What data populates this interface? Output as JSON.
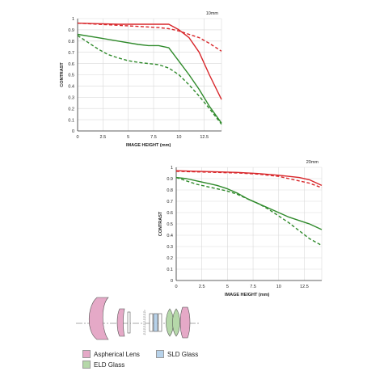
{
  "colors": {
    "red": "#d8262a",
    "green": "#2f8a2b",
    "aspherical": "#e5a9c7",
    "sld": "#b7d2ea",
    "eld": "#b5d8a9",
    "grid": "#d9d9d9"
  },
  "chart_data": [
    {
      "type": "line",
      "title": "10mm",
      "xlabel": "IMAGE HEIGHT (mm)",
      "ylabel": "CONTRAST",
      "xlim": [
        0,
        14.2
      ],
      "ylim": [
        0,
        1
      ],
      "xticks": [
        "0",
        "2.5",
        "5",
        "7.5",
        "10",
        "12.5"
      ],
      "yticks": [
        "0",
        "0.1",
        "0.2",
        "0.3",
        "0.4",
        "0.5",
        "0.6",
        "0.7",
        "0.8",
        "0.9",
        "1"
      ],
      "grid": true,
      "series": [
        {
          "color": "red",
          "style": "solid",
          "x": [
            0,
            2,
            4,
            6,
            8,
            9,
            10,
            11,
            12,
            13,
            14.2
          ],
          "y": [
            0.96,
            0.955,
            0.95,
            0.95,
            0.95,
            0.95,
            0.9,
            0.83,
            0.7,
            0.5,
            0.28
          ]
        },
        {
          "color": "red",
          "style": "dashed",
          "x": [
            0,
            2,
            4,
            6,
            8,
            9,
            10,
            11,
            12,
            13,
            14.2
          ],
          "y": [
            0.96,
            0.95,
            0.94,
            0.93,
            0.92,
            0.91,
            0.89,
            0.86,
            0.83,
            0.78,
            0.71
          ]
        },
        {
          "color": "green",
          "style": "solid",
          "x": [
            0,
            2,
            4,
            6,
            7,
            8,
            9,
            10,
            11,
            12,
            13,
            14.2
          ],
          "y": [
            0.86,
            0.83,
            0.8,
            0.77,
            0.76,
            0.76,
            0.74,
            0.62,
            0.5,
            0.37,
            0.22,
            0.07
          ]
        },
        {
          "color": "green",
          "style": "dashed",
          "x": [
            0,
            1,
            2,
            3,
            4,
            5,
            6,
            7,
            8,
            9,
            10,
            11,
            12,
            13,
            14.2
          ],
          "y": [
            0.85,
            0.79,
            0.73,
            0.68,
            0.65,
            0.625,
            0.61,
            0.6,
            0.59,
            0.56,
            0.5,
            0.41,
            0.31,
            0.2,
            0.06
          ]
        }
      ]
    },
    {
      "type": "line",
      "title": "20mm",
      "xlabel": "IMAGE HEIGHT (mm)",
      "ylabel": "CONTRAST",
      "xlim": [
        0,
        14.2
      ],
      "ylim": [
        0,
        1
      ],
      "xticks": [
        "0",
        "2.5",
        "5",
        "7.5",
        "10",
        "12.5"
      ],
      "yticks": [
        "0",
        "0.1",
        "0.2",
        "0.3",
        "0.4",
        "0.5",
        "0.6",
        "0.7",
        "0.8",
        "0.9",
        "1"
      ],
      "grid": true,
      "series": [
        {
          "color": "red",
          "style": "solid",
          "x": [
            0,
            2,
            4,
            6,
            8,
            10,
            11,
            12,
            13,
            14.2
          ],
          "y": [
            0.97,
            0.965,
            0.96,
            0.955,
            0.945,
            0.93,
            0.92,
            0.91,
            0.89,
            0.84
          ]
        },
        {
          "color": "red",
          "style": "dashed",
          "x": [
            0,
            2,
            4,
            6,
            8,
            10,
            11,
            12,
            13,
            14.2
          ],
          "y": [
            0.965,
            0.96,
            0.955,
            0.95,
            0.94,
            0.92,
            0.9,
            0.88,
            0.86,
            0.82
          ]
        },
        {
          "color": "green",
          "style": "solid",
          "x": [
            0,
            1,
            2,
            3,
            4,
            5,
            6,
            7,
            8,
            9,
            10,
            11,
            12,
            13,
            14.2
          ],
          "y": [
            0.91,
            0.9,
            0.88,
            0.86,
            0.84,
            0.81,
            0.77,
            0.72,
            0.68,
            0.64,
            0.6,
            0.56,
            0.53,
            0.5,
            0.45
          ]
        },
        {
          "color": "green",
          "style": "dashed",
          "x": [
            0,
            1,
            2,
            3,
            4,
            5,
            6,
            7,
            8,
            9,
            10,
            11,
            12,
            13,
            14.2
          ],
          "y": [
            0.91,
            0.88,
            0.85,
            0.83,
            0.81,
            0.79,
            0.76,
            0.72,
            0.68,
            0.63,
            0.57,
            0.51,
            0.44,
            0.37,
            0.31
          ]
        }
      ]
    }
  ],
  "legend": {
    "aspherical": "Aspherical Lens",
    "sld": "SLD Glass",
    "eld": "ELD Glass"
  }
}
